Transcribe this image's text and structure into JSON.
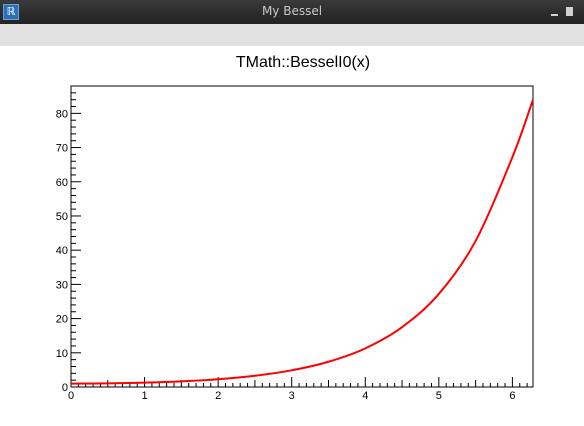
{
  "window": {
    "title": "My Bessel",
    "app_icon": "root-app-icon"
  },
  "colors": {
    "curve": "#ff0000",
    "axis": "#000000",
    "titlebar": "#2e2e2e",
    "menubar": "#e1e1e1"
  },
  "chart_data": {
    "type": "line",
    "title": "TMath::BesselI0(x)",
    "xlabel": "",
    "ylabel": "",
    "xlim": [
      0,
      6.28
    ],
    "ylim": [
      0,
      88
    ],
    "x_ticks": [
      0,
      1,
      2,
      3,
      4,
      5,
      6
    ],
    "y_ticks": [
      0,
      10,
      20,
      30,
      40,
      50,
      60,
      70,
      80
    ],
    "x_tick_labels": [
      "0",
      "1",
      "2",
      "3",
      "4",
      "5",
      "6"
    ],
    "y_tick_labels": [
      "0",
      "10",
      "20",
      "30",
      "40",
      "50",
      "60",
      "70",
      "80"
    ],
    "grid": false,
    "series": [
      {
        "name": "",
        "color": "#ff0000",
        "x": [
          0,
          0.5,
          1,
          1.5,
          2,
          2.5,
          3,
          3.5,
          4,
          4.5,
          5,
          5.5,
          6,
          6.28
        ],
        "y": [
          1.0,
          1.06,
          1.27,
          1.65,
          2.28,
          3.29,
          4.88,
          7.38,
          11.3,
          17.5,
          27.2,
          42.7,
          67.2,
          84.0
        ]
      }
    ]
  }
}
